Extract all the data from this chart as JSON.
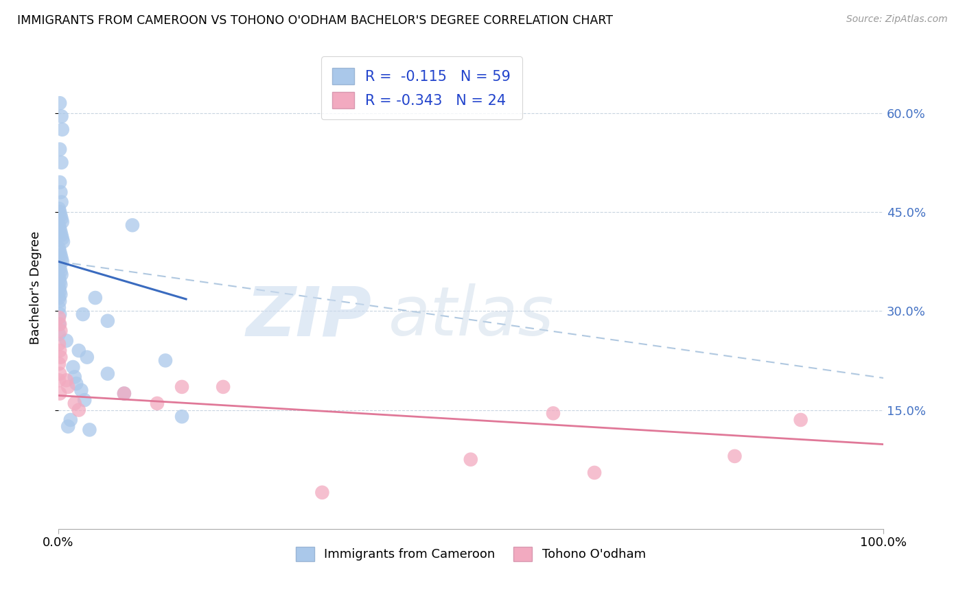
{
  "title": "IMMIGRANTS FROM CAMEROON VS TOHONO O'ODHAM BACHELOR'S DEGREE CORRELATION CHART",
  "source": "Source: ZipAtlas.com",
  "ylabel": "Bachelor's Degree",
  "blue_color": "#aac8ea",
  "pink_color": "#f2aac0",
  "blue_line_color": "#3a6bbf",
  "pink_line_color": "#e07898",
  "dashed_color": "#b0c8e0",
  "right_tick_color": "#4472c4",
  "ytick_values": [
    0.15,
    0.3,
    0.45,
    0.6
  ],
  "ytick_labels": [
    "15.0%",
    "30.0%",
    "45.0%",
    "60.0%"
  ],
  "xlim": [
    0.0,
    1.0
  ],
  "ylim": [
    -0.03,
    0.7
  ],
  "blue_scatter_x": [
    0.002,
    0.004,
    0.005,
    0.002,
    0.004,
    0.002,
    0.003,
    0.004,
    0.001,
    0.002,
    0.003,
    0.004,
    0.005,
    0.001,
    0.002,
    0.003,
    0.004,
    0.005,
    0.006,
    0.001,
    0.002,
    0.003,
    0.004,
    0.005,
    0.001,
    0.002,
    0.003,
    0.004,
    0.001,
    0.002,
    0.003,
    0.001,
    0.002,
    0.003,
    0.001,
    0.002,
    0.001,
    0.002,
    0.001,
    0.001,
    0.03,
    0.06,
    0.09,
    0.13,
    0.15,
    0.06,
    0.045,
    0.02,
    0.025,
    0.035,
    0.08,
    0.01,
    0.015,
    0.012,
    0.018,
    0.022,
    0.028,
    0.032,
    0.038
  ],
  "blue_scatter_y": [
    0.615,
    0.595,
    0.575,
    0.545,
    0.525,
    0.495,
    0.48,
    0.465,
    0.455,
    0.45,
    0.445,
    0.44,
    0.435,
    0.43,
    0.425,
    0.42,
    0.415,
    0.41,
    0.405,
    0.395,
    0.39,
    0.385,
    0.38,
    0.375,
    0.37,
    0.365,
    0.36,
    0.355,
    0.35,
    0.345,
    0.34,
    0.335,
    0.33,
    0.325,
    0.32,
    0.315,
    0.305,
    0.295,
    0.28,
    0.265,
    0.295,
    0.285,
    0.43,
    0.225,
    0.14,
    0.205,
    0.32,
    0.2,
    0.24,
    0.23,
    0.175,
    0.255,
    0.135,
    0.125,
    0.215,
    0.19,
    0.18,
    0.165,
    0.12
  ],
  "pink_scatter_x": [
    0.001,
    0.002,
    0.003,
    0.001,
    0.002,
    0.003,
    0.001,
    0.002,
    0.001,
    0.002,
    0.01,
    0.012,
    0.02,
    0.025,
    0.12,
    0.15,
    0.2,
    0.5,
    0.65,
    0.82,
    0.9,
    0.32,
    0.6,
    0.08
  ],
  "pink_scatter_y": [
    0.29,
    0.28,
    0.27,
    0.25,
    0.24,
    0.23,
    0.22,
    0.205,
    0.195,
    0.175,
    0.195,
    0.185,
    0.16,
    0.15,
    0.16,
    0.185,
    0.185,
    0.075,
    0.055,
    0.08,
    0.135,
    0.025,
    0.145,
    0.175
  ],
  "blue_trendline_x": [
    0.0,
    0.155
  ],
  "blue_trendline_y": [
    0.375,
    0.318
  ],
  "pink_trendline_x": [
    0.0,
    1.0
  ],
  "pink_trendline_y": [
    0.172,
    0.098
  ],
  "dashed_trendline_x": [
    0.0,
    1.02
  ],
  "dashed_trendline_y": [
    0.375,
    0.195
  ],
  "legend1_label1": "R =  -0.115   N = 59",
  "legend1_label2": "R = -0.343   N = 24",
  "legend2_label1": "Immigrants from Cameroon",
  "legend2_label2": "Tohono O'odham"
}
